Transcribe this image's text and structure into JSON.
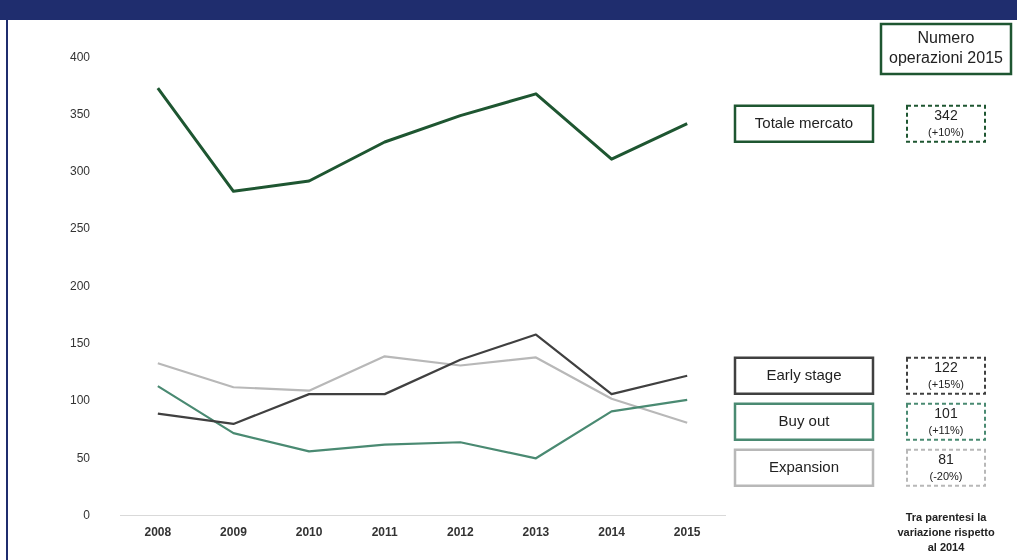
{
  "chart_data": {
    "type": "line",
    "categories": [
      "2008",
      "2009",
      "2010",
      "2011",
      "2012",
      "2013",
      "2014",
      "2015"
    ],
    "series": [
      {
        "name": "Totale mercato",
        "color": "#1e5631",
        "values": [
          373,
          283,
          292,
          326,
          349,
          368,
          311,
          342
        ]
      },
      {
        "name": "Early stage",
        "color": "#404040",
        "values": [
          89,
          80,
          106,
          106,
          136,
          158,
          106,
          122
        ]
      },
      {
        "name": "Buy out",
        "color": "#4a8a72",
        "values": [
          113,
          72,
          56,
          62,
          64,
          50,
          91,
          101
        ]
      },
      {
        "name": "Expansion",
        "color": "#b8b8b8",
        "values": [
          133,
          112,
          109,
          139,
          131,
          138,
          102,
          81
        ]
      }
    ],
    "ylim": [
      0,
      400
    ],
    "yticks": [
      0,
      50,
      100,
      150,
      200,
      250,
      300,
      350,
      400
    ],
    "grid": false,
    "legend": false,
    "marker": "none",
    "line_style": "solid",
    "annotations": [
      "Numero operazioni 2015",
      "342 (+10%)",
      "122 (+15%)",
      "101 (+11%)",
      "81 (-20%)",
      "Tra parentesi la variazione rispetto al 2014"
    ]
  }
}
